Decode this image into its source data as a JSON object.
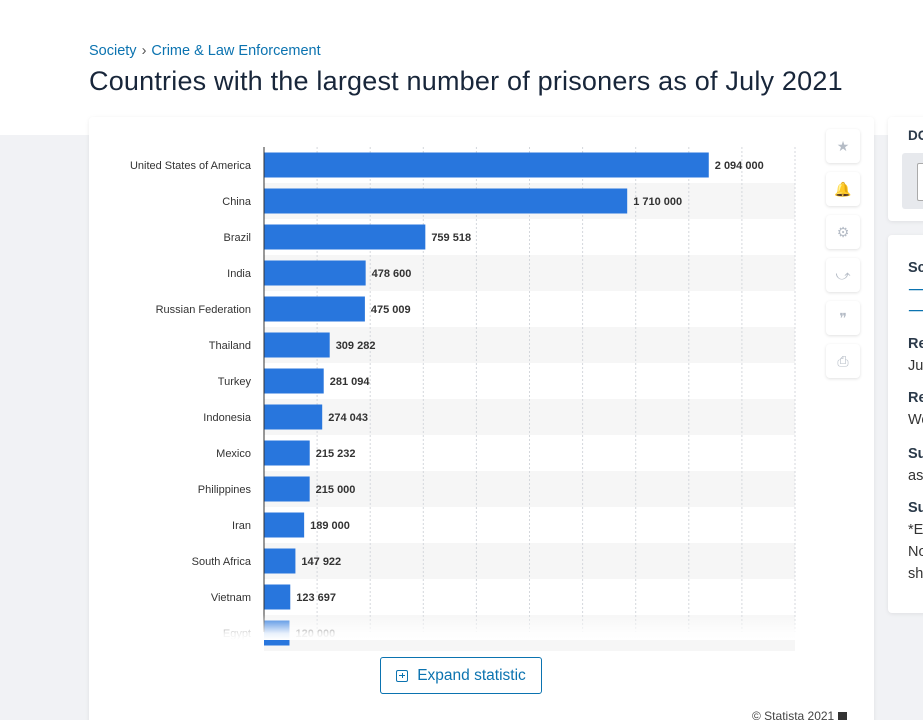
{
  "breadcrumb": {
    "items": [
      "Society",
      "Crime & Law Enforcement"
    ],
    "separator": "›"
  },
  "page_title": "Countries with the largest number of prisoners as of July 2021",
  "chart_data": {
    "type": "bar",
    "orientation": "horizontal",
    "categories": [
      "United States of America",
      "China",
      "Brazil",
      "India",
      "Russian Federation",
      "Thailand",
      "Turkey",
      "Indonesia",
      "Mexico",
      "Philippines",
      "Iran",
      "South Africa",
      "Vietnam",
      "Egypt"
    ],
    "values": [
      2094000,
      1710000,
      759518,
      478600,
      475009,
      309282,
      281094,
      274043,
      215232,
      215000,
      189000,
      147922,
      123697,
      120000
    ],
    "value_labels": [
      "2 094 000",
      "1 710 000",
      "759 518",
      "478 600",
      "475 009",
      "309 282",
      "281 094",
      "274 043",
      "215 232",
      "215 000",
      "189 000",
      "147 922",
      "123 697",
      "120 000"
    ],
    "xlim": [
      0,
      2500000
    ],
    "grid": true,
    "bar_color": "#2876dd",
    "stripe_color": "#f6f6f6",
    "note": "list continues below (truncated / fading)"
  },
  "tools": [
    {
      "name": "star-icon",
      "glyph": "★"
    },
    {
      "name": "bell-icon",
      "glyph": "🔔"
    },
    {
      "name": "gear-icon",
      "glyph": "⚙"
    },
    {
      "name": "share-icon",
      "glyph": "⤻"
    },
    {
      "name": "quote-icon",
      "glyph": "❞"
    },
    {
      "name": "print-icon",
      "glyph": "⎙"
    }
  ],
  "expand_label": "Expand statistic",
  "copyright": "© Statista 2021",
  "side": {
    "download_label": "DC",
    "source_label": "Sc",
    "release_label": "Re",
    "release_value": "Jul",
    "region_label": "Re",
    "region_value": "We",
    "survey_label": "Su",
    "survey_value": "as",
    "supplementary_label": "Su",
    "supp_line1": "*E",
    "supp_line2": "No",
    "supp_line3": "sh"
  },
  "colors": {
    "accent": "#0b73b0",
    "title": "#18263a",
    "page_bg": "#f1f2f5"
  }
}
